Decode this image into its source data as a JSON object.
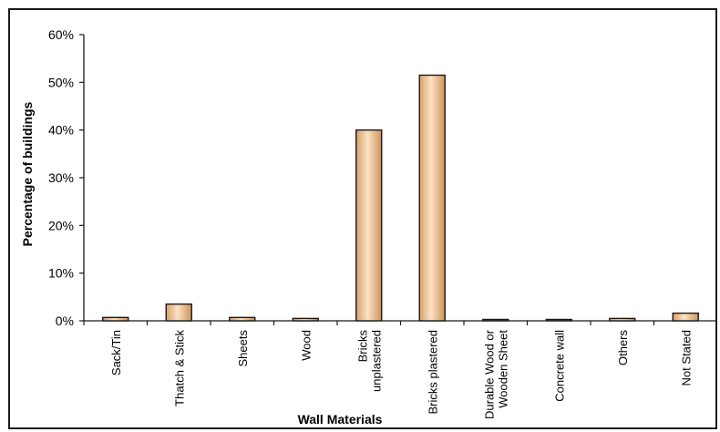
{
  "chart_data": {
    "type": "bar",
    "title": "",
    "xlabel": "Wall Materials",
    "ylabel": "Percentage of buildings",
    "ylim": [
      0,
      60
    ],
    "yticks": [
      0,
      10,
      20,
      30,
      40,
      50,
      60
    ],
    "ytick_format": "{v}%",
    "grid": false,
    "legend": "none",
    "categories": [
      "Sack/Tin",
      "Thatch & Stick",
      "Sheets",
      "Wood",
      "Bricks unplastered",
      "Bricks plastered",
      "Durable Wood or Wooden Sheet",
      "Concrete wall",
      "Others",
      "Not Stated"
    ],
    "category_lines": [
      [
        "Sack/Tin"
      ],
      [
        "Thatch & Stick"
      ],
      [
        "Sheets"
      ],
      [
        "Wood"
      ],
      [
        "Bricks",
        "unplastered"
      ],
      [
        "Bricks plastered"
      ],
      [
        "Durable Wood or",
        "Wooden Sheet"
      ],
      [
        "Concrete wall"
      ],
      [
        "Others"
      ],
      [
        "Not Stated"
      ]
    ],
    "values": [
      0.7,
      3.5,
      0.7,
      0.5,
      40.0,
      51.5,
      0.2,
      0.2,
      0.5,
      1.6
    ],
    "bar_color": "#f2c79a",
    "bar_edge_color": "#1a1a1a"
  }
}
